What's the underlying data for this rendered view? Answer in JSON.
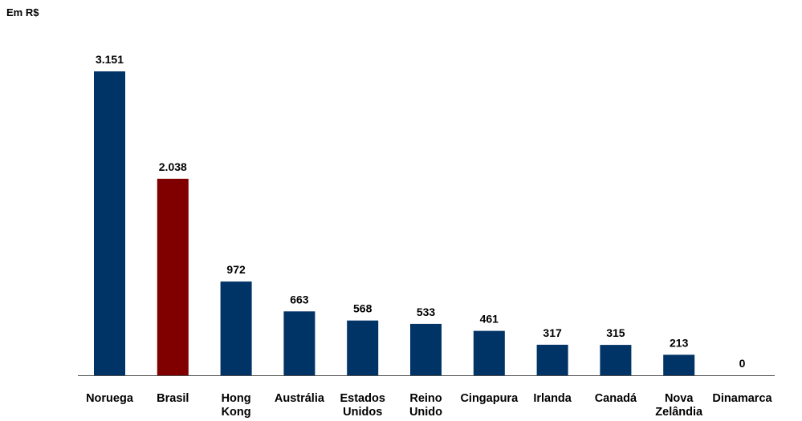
{
  "chart_data": {
    "type": "bar",
    "unit_label": "Em R$",
    "categories": [
      [
        "Noruega"
      ],
      [
        "Brasil"
      ],
      [
        "Hong",
        "Kong"
      ],
      [
        "Austrália"
      ],
      [
        "Estados",
        "Unidos"
      ],
      [
        "Reino",
        "Unido"
      ],
      [
        "Cingapura"
      ],
      [
        "Irlanda"
      ],
      [
        "Canadá"
      ],
      [
        "Nova",
        "Zelândia"
      ],
      [
        "Dinamarca"
      ]
    ],
    "values": [
      3151,
      2038,
      972,
      663,
      568,
      533,
      461,
      317,
      315,
      213,
      0
    ],
    "value_labels": [
      "3.151",
      "2.038",
      "972",
      "663",
      "568",
      "533",
      "461",
      "317",
      "315",
      "213",
      "0"
    ],
    "bar_colors": [
      "#003366",
      "#800000",
      "#003366",
      "#003366",
      "#003366",
      "#003366",
      "#003366",
      "#003366",
      "#003366",
      "#003366",
      "#003366"
    ],
    "category_label_colors": [
      "#000000",
      "#800000",
      "#000000",
      "#000000",
      "#000000",
      "#000000",
      "#000000",
      "#000000",
      "#000000",
      "#000000",
      "#000000"
    ],
    "ylim": [
      0,
      3151
    ],
    "y_axis_visible": false,
    "grid": false,
    "legend": "none"
  }
}
